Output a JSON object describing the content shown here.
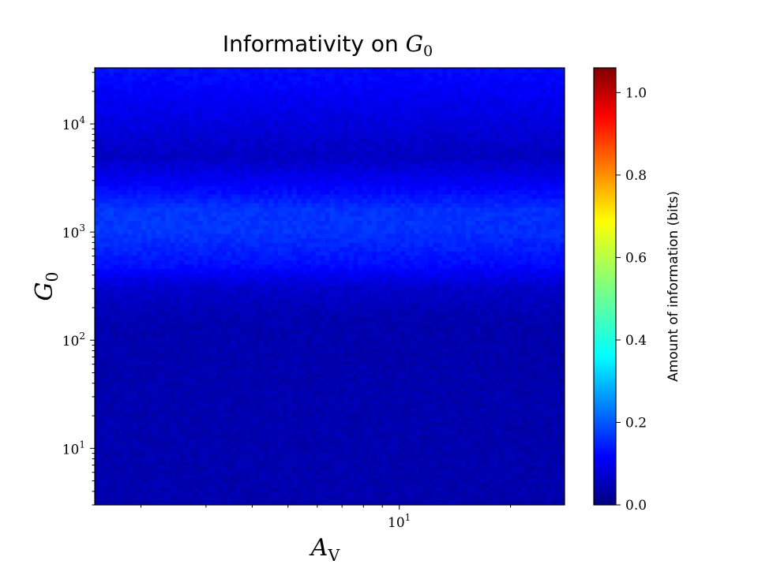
{
  "chart_data": {
    "type": "heatmap",
    "title": {
      "text": "Informativity on ",
      "symbol": "G",
      "subscript": "0"
    },
    "xlabel": {
      "symbol": "A",
      "subscript": "V"
    },
    "ylabel": {
      "symbol": "G",
      "subscript": "0"
    },
    "x_scale": "log",
    "y_scale": "log",
    "xlim": [
      1.5,
      28
    ],
    "ylim": [
      3,
      33000
    ],
    "x_major_ticks": [
      {
        "value": 10,
        "base": "10",
        "exp": "1"
      }
    ],
    "y_major_ticks": [
      {
        "value": 10,
        "base": "10",
        "exp": "1"
      },
      {
        "value": 100,
        "base": "10",
        "exp": "2"
      },
      {
        "value": 1000,
        "base": "10",
        "exp": "3"
      },
      {
        "value": 10000,
        "base": "10",
        "exp": "4"
      }
    ],
    "colormap": "jet",
    "colorbar": {
      "label": "Amount of information (bits)",
      "min": 0.0,
      "max": 1.06,
      "ticks": [
        "0.0",
        "0.2",
        "0.4",
        "0.6",
        "0.8",
        "1.0"
      ]
    },
    "grid": false,
    "intensity_profile_by_G0": [
      {
        "G0": 3,
        "bits": 0.05
      },
      {
        "G0": 30,
        "bits": 0.05
      },
      {
        "G0": 150,
        "bits": 0.05
      },
      {
        "G0": 300,
        "bits": 0.08
      },
      {
        "G0": 500,
        "bits": 0.15
      },
      {
        "G0": 1000,
        "bits": 0.19
      },
      {
        "G0": 1600,
        "bits": 0.19
      },
      {
        "G0": 3000,
        "bits": 0.12
      },
      {
        "G0": 5000,
        "bits": 0.07
      },
      {
        "G0": 10000,
        "bits": 0.1
      },
      {
        "G0": 33000,
        "bits": 0.15
      }
    ]
  }
}
